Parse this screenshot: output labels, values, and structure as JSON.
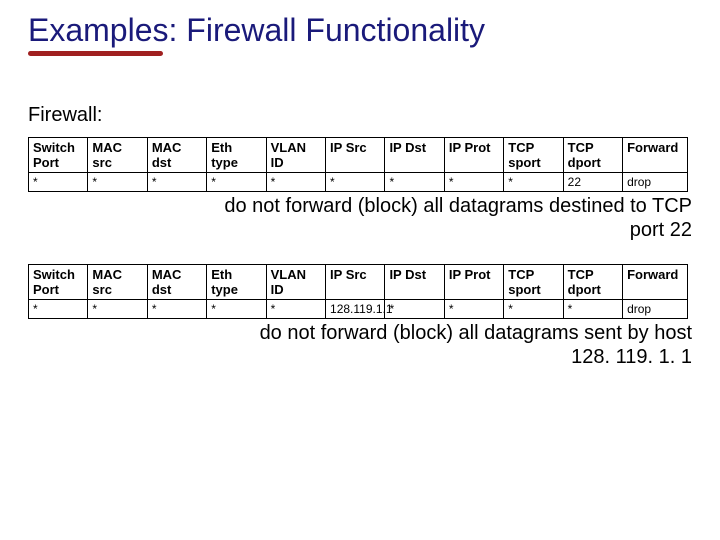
{
  "title": "Examples: Firewall Functionality",
  "section_label": "Firewall:",
  "headers": {
    "switch_port": "Switch Port",
    "mac_src": "MAC src",
    "mac_dst": "MAC dst",
    "eth_type": "Eth type",
    "vlan_id": "VLAN ID",
    "ip_src": "IP Src",
    "ip_dst": "IP Dst",
    "ip_prot": "IP Prot",
    "tcp_sport": "TCP sport",
    "tcp_dport": "TCP dport",
    "forward": "Forward"
  },
  "table1": {
    "row": {
      "switch_port": "*",
      "mac_src": "*",
      "mac_dst": "*",
      "eth_type": "*",
      "vlan_id": "*",
      "ip_src": "*",
      "ip_dst": "*",
      "ip_prot": "*",
      "tcp_sport": "*",
      "tcp_dport": "22",
      "forward": "drop"
    },
    "caption_l1": "do not forward (block) all datagrams destined to TCP",
    "caption_l2": "port 22"
  },
  "table2": {
    "row": {
      "switch_port": "*",
      "mac_src": "*",
      "mac_dst": "*",
      "eth_type": "*",
      "vlan_id": "*",
      "ip_src": "128.119.1.1",
      "ip_dst": "*",
      "ip_prot": "*",
      "tcp_sport": "*",
      "tcp_dport": "*",
      "forward": "drop"
    },
    "caption_l1": "do not forward (block) all datagrams sent by host",
    "caption_l2": "128. 119. 1. 1"
  },
  "colors": {
    "title": "#1a1a7a",
    "underline": "#a02020",
    "forward_bg": "#9acd32",
    "border": "#000000",
    "background": "#ffffff"
  }
}
